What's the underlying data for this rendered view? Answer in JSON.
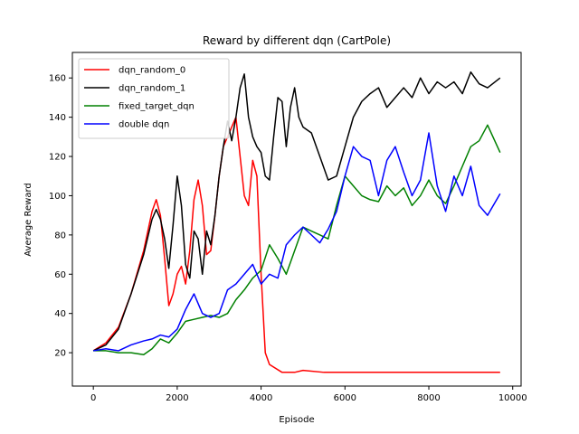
{
  "chart_data": {
    "type": "line",
    "title": "Reward by different dqn (CartPole)",
    "xlabel": "Episode",
    "ylabel": "Average Reward",
    "xlim": [
      -500,
      10200
    ],
    "ylim": [
      3,
      173
    ],
    "xticks": [
      0,
      2000,
      4000,
      6000,
      8000,
      10000
    ],
    "yticks": [
      20,
      40,
      60,
      80,
      100,
      120,
      140,
      160
    ],
    "grid": false,
    "legend_position": "top-left",
    "series": [
      {
        "name": "dqn_random_0",
        "color": "#ff0000",
        "x": [
          0,
          300,
          600,
          900,
          1200,
          1400,
          1500,
          1600,
          1700,
          1800,
          1900,
          2000,
          2100,
          2200,
          2300,
          2400,
          2500,
          2600,
          2700,
          2800,
          2900,
          3000,
          3100,
          3200,
          3300,
          3400,
          3500,
          3600,
          3700,
          3800,
          3900,
          4000,
          4100,
          4200,
          4500,
          4800,
          5000,
          5500,
          6000,
          7000,
          8000,
          8500,
          9000,
          9700
        ],
        "y": [
          21,
          25,
          33,
          50,
          72,
          92,
          98,
          90,
          68,
          44,
          50,
          60,
          64,
          55,
          72,
          98,
          108,
          95,
          70,
          72,
          90,
          110,
          125,
          130,
          135,
          140,
          120,
          100,
          95,
          118,
          110,
          60,
          20,
          14,
          10,
          10,
          11,
          10,
          10,
          10,
          10,
          10,
          10,
          10
        ]
      },
      {
        "name": "dqn_random_1",
        "color": "#000000",
        "x": [
          0,
          300,
          600,
          900,
          1200,
          1400,
          1500,
          1600,
          1700,
          1800,
          1900,
          2000,
          2100,
          2200,
          2300,
          2400,
          2500,
          2600,
          2700,
          2800,
          2900,
          3000,
          3100,
          3200,
          3300,
          3400,
          3500,
          3600,
          3700,
          3800,
          3900,
          4000,
          4100,
          4200,
          4300,
          4400,
          4500,
          4600,
          4700,
          4800,
          4900,
          5000,
          5200,
          5400,
          5600,
          5800,
          6000,
          6200,
          6400,
          6600,
          6800,
          7000,
          7200,
          7400,
          7600,
          7800,
          8000,
          8200,
          8400,
          8600,
          8800,
          9000,
          9200,
          9400,
          9700
        ],
        "y": [
          21,
          24,
          32,
          50,
          70,
          88,
          93,
          88,
          78,
          63,
          85,
          110,
          95,
          65,
          58,
          82,
          78,
          60,
          82,
          75,
          90,
          110,
          125,
          138,
          128,
          140,
          155,
          162,
          140,
          130,
          125,
          122,
          110,
          108,
          130,
          150,
          148,
          125,
          145,
          155,
          140,
          135,
          132,
          120,
          108,
          110,
          125,
          140,
          148,
          152,
          155,
          145,
          150,
          155,
          150,
          160,
          152,
          158,
          155,
          158,
          152,
          163,
          157,
          155,
          160
        ]
      },
      {
        "name": "fixed_target_dqn",
        "color": "#008000",
        "x": [
          0,
          300,
          600,
          900,
          1200,
          1400,
          1600,
          1800,
          2000,
          2200,
          2400,
          2600,
          2800,
          3000,
          3200,
          3400,
          3600,
          3800,
          4000,
          4200,
          4400,
          4600,
          4800,
          5000,
          5200,
          5400,
          5600,
          5800,
          6000,
          6200,
          6400,
          6600,
          6800,
          7000,
          7200,
          7400,
          7600,
          7800,
          8000,
          8200,
          8400,
          8600,
          8800,
          9000,
          9200,
          9400,
          9700
        ],
        "y": [
          21,
          21,
          20,
          20,
          19,
          22,
          27,
          25,
          30,
          36,
          37,
          38,
          39,
          38,
          40,
          47,
          52,
          58,
          62,
          75,
          68,
          60,
          72,
          84,
          82,
          80,
          78,
          95,
          110,
          105,
          100,
          98,
          97,
          105,
          100,
          104,
          95,
          100,
          108,
          100,
          96,
          105,
          115,
          125,
          128,
          136,
          122
        ]
      },
      {
        "name": "double dqn",
        "color": "#0000ff",
        "x": [
          0,
          300,
          600,
          900,
          1200,
          1400,
          1600,
          1800,
          2000,
          2200,
          2400,
          2600,
          2800,
          3000,
          3200,
          3400,
          3600,
          3800,
          4000,
          4200,
          4400,
          4600,
          4800,
          5000,
          5200,
          5400,
          5600,
          5800,
          6000,
          6200,
          6400,
          6600,
          6800,
          7000,
          7200,
          7400,
          7600,
          7800,
          8000,
          8200,
          8400,
          8600,
          8800,
          9000,
          9200,
          9400,
          9700
        ],
        "y": [
          21,
          22,
          21,
          24,
          26,
          27,
          29,
          28,
          32,
          42,
          50,
          40,
          38,
          40,
          52,
          55,
          60,
          65,
          55,
          60,
          58,
          75,
          80,
          84,
          80,
          76,
          83,
          92,
          110,
          125,
          120,
          118,
          100,
          118,
          125,
          112,
          100,
          108,
          132,
          105,
          92,
          110,
          100,
          115,
          95,
          90,
          101
        ]
      }
    ]
  }
}
